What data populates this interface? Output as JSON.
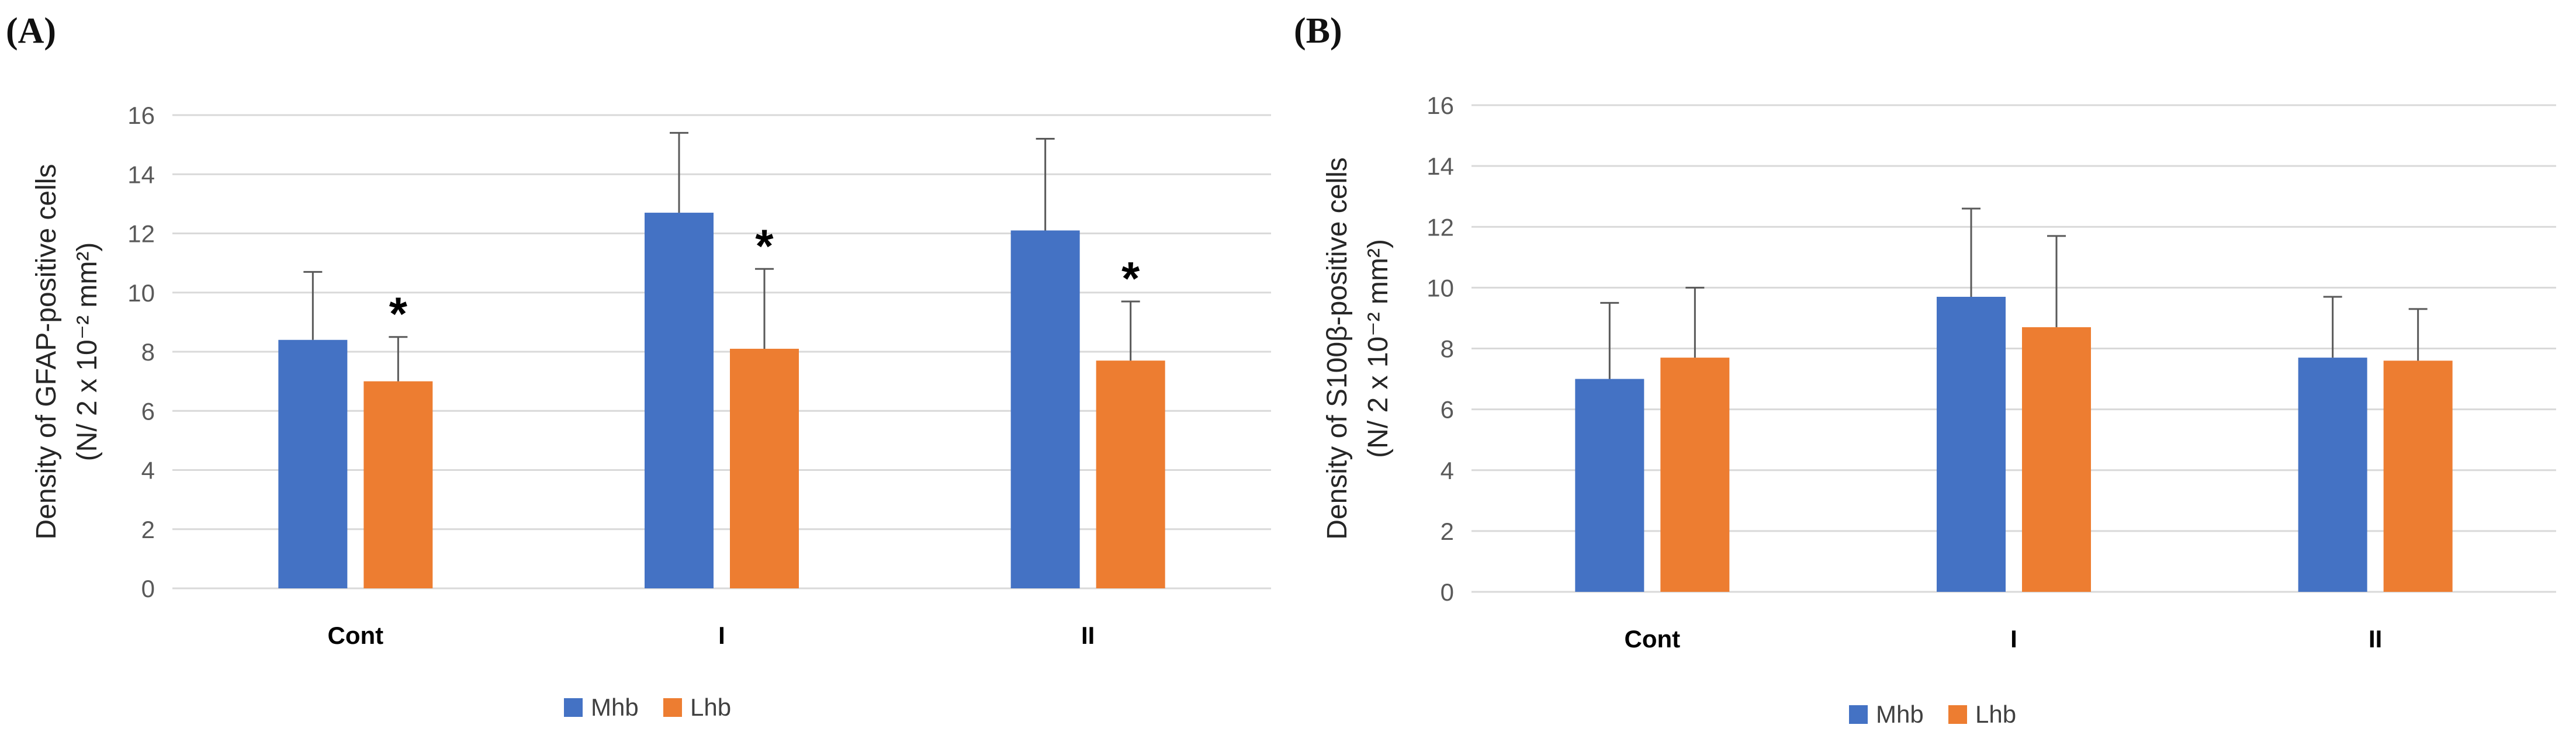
{
  "chart_data": [
    {
      "id": "A",
      "panel_label": "(A)",
      "type": "bar",
      "categories": [
        "Cont",
        "I",
        "II"
      ],
      "series": [
        {
          "name": "Mhb",
          "color": "#4472C4",
          "values": [
            8.4,
            12.7,
            12.1
          ],
          "errors": [
            2.3,
            2.7,
            3.1
          ]
        },
        {
          "name": "Lhb",
          "color": "#ED7D31",
          "values": [
            7.0,
            8.1,
            7.7
          ],
          "errors": [
            1.5,
            2.7,
            2.0
          ]
        }
      ],
      "significance": [
        "*",
        "*",
        "*"
      ],
      "ylabel_line1": "Density of GFAP-positive cells",
      "ylabel_line2": "(N/ 2 x 10⁻² mm²)",
      "ylim": [
        0,
        16
      ],
      "yticks": [
        "0",
        "2",
        "4",
        "6",
        "8",
        "10",
        "12",
        "14",
        "16"
      ],
      "legend_position": "bottom-center",
      "grid": true
    },
    {
      "id": "B",
      "panel_label": "(B)",
      "type": "bar",
      "categories": [
        "Cont",
        "I",
        "II"
      ],
      "series": [
        {
          "name": "Mhb",
          "color": "#4472C4",
          "values": [
            7.0,
            9.7,
            7.7
          ],
          "errors": [
            2.5,
            2.9,
            2.0
          ]
        },
        {
          "name": "Lhb",
          "color": "#ED7D31",
          "values": [
            7.7,
            8.7,
            7.6
          ],
          "errors": [
            2.3,
            3.0,
            1.7
          ]
        }
      ],
      "significance": [
        "",
        "",
        ""
      ],
      "ylabel_line1": "Density of S100β-positive cells",
      "ylabel_line2": "(N/ 2 x 10⁻² mm²)",
      "ylim": [
        0,
        16
      ],
      "yticks": [
        "0",
        "2",
        "4",
        "6",
        "8",
        "10",
        "12",
        "14",
        "16"
      ],
      "legend_position": "bottom-center",
      "grid": true
    }
  ]
}
